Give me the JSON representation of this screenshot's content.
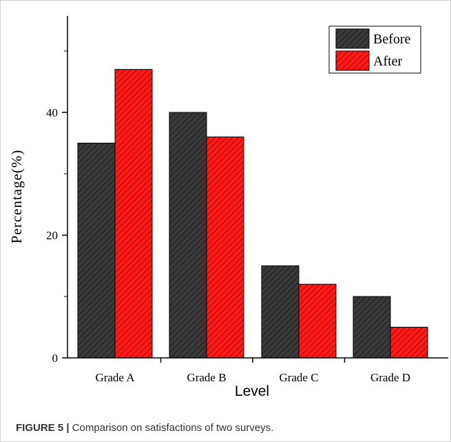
{
  "chart_data": {
    "type": "bar",
    "categories": [
      "Grade A",
      "Grade B",
      "Grade C",
      "Grade D"
    ],
    "series": [
      {
        "name": "Before",
        "values": [
          35,
          40,
          15,
          10
        ],
        "color": "#3a3a3a"
      },
      {
        "name": "After",
        "values": [
          47,
          36,
          12,
          5
        ],
        "color": "#ff1a1a"
      }
    ],
    "xlabel": "Level",
    "ylabel": "Percentage(%)",
    "ylim": [
      0,
      55
    ],
    "yticks": [
      0,
      20,
      40
    ],
    "ytick_labels": [
      "0",
      "20",
      "40"
    ],
    "legend_position": "top-right",
    "grid": false
  },
  "caption": {
    "figure_label": "FIGURE 5 |",
    "text": " Comparison on satisfactions of two surveys."
  }
}
